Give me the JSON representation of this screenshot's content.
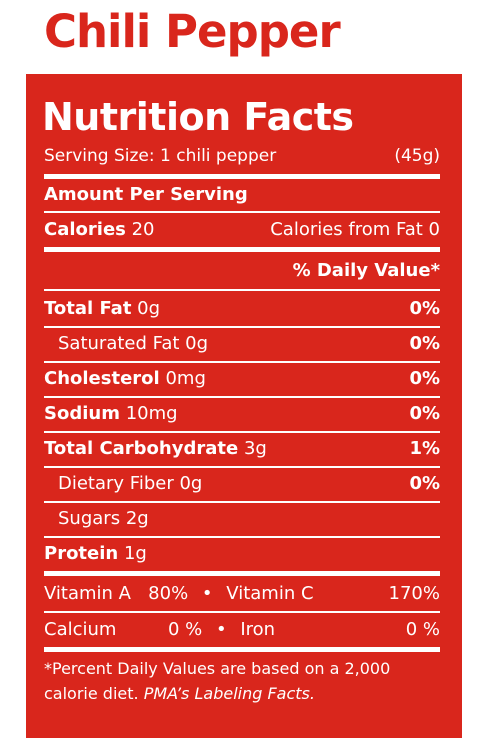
{
  "title": "Chili Pepper",
  "heading": "Nutrition Facts",
  "serving": {
    "label": "Serving Size: 1 chili pepper",
    "weight": "(45g)"
  },
  "amount_per_serving": "Amount Per Serving",
  "calories": {
    "label": "Calories",
    "value": "20",
    "from_fat_label": "Calories from Fat",
    "from_fat_value": "0"
  },
  "dv_header": "% Daily Value*",
  "nutrients": [
    {
      "label": "Total Fat",
      "amount": "0g",
      "dv": "0%"
    },
    {
      "label": "Saturated Fat",
      "amount": "0g",
      "dv": "0%"
    },
    {
      "label": "Cholesterol",
      "amount": "0mg",
      "dv": "0%"
    },
    {
      "label": "Sodium",
      "amount": "10mg",
      "dv": "0%"
    },
    {
      "label": "Total Carbohydrate",
      "amount": "3g",
      "dv": "1%"
    },
    {
      "label": "Dietary Fiber",
      "amount": "0g",
      "dv": "0%"
    },
    {
      "label": "Sugars",
      "amount": "2g"
    },
    {
      "label": "Protein",
      "amount": "1g"
    }
  ],
  "vitamins": [
    {
      "left_label": "Vitamin A",
      "left_value": "80%",
      "right_label": "Vitamin C",
      "right_value": "170%"
    },
    {
      "left_label": "Calcium",
      "left_value": "0 %",
      "right_label": "Iron",
      "right_value": "0 %"
    }
  ],
  "bullet": "•",
  "footnote": {
    "text": "*Percent Daily Values are based on a 2,000 calorie diet.",
    "source": "PMA’s Labeling Facts."
  },
  "colors": {
    "panel": "#d9261c",
    "title": "#d9261c",
    "text": "#ffffff"
  }
}
